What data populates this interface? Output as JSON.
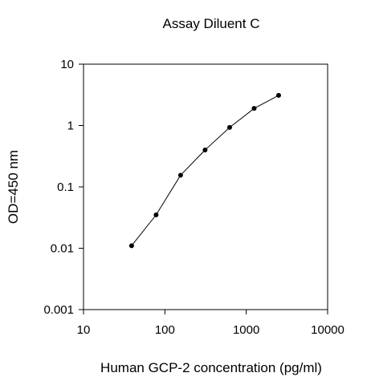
{
  "chart_data": {
    "type": "line",
    "title": "Assay Diluent C",
    "xlabel": "Human GCP-2 concentration (pg/ml)",
    "ylabel": "OD=450 nm",
    "x_scale": "log",
    "y_scale": "log",
    "xlim": [
      10,
      10000
    ],
    "ylim": [
      0.001,
      10
    ],
    "x_ticks": [
      "10",
      "100",
      "1000",
      "10000"
    ],
    "y_ticks": [
      "0.001",
      "0.01",
      "0.1",
      "1",
      "10"
    ],
    "grid": false,
    "legend": "none",
    "series": [
      {
        "x": [
          39,
          78,
          156,
          312,
          625,
          1250,
          2500
        ],
        "y": [
          0.011,
          0.035,
          0.155,
          0.4,
          0.93,
          1.9,
          3.1
        ],
        "color": "#000000",
        "marker": "circle"
      }
    ]
  }
}
